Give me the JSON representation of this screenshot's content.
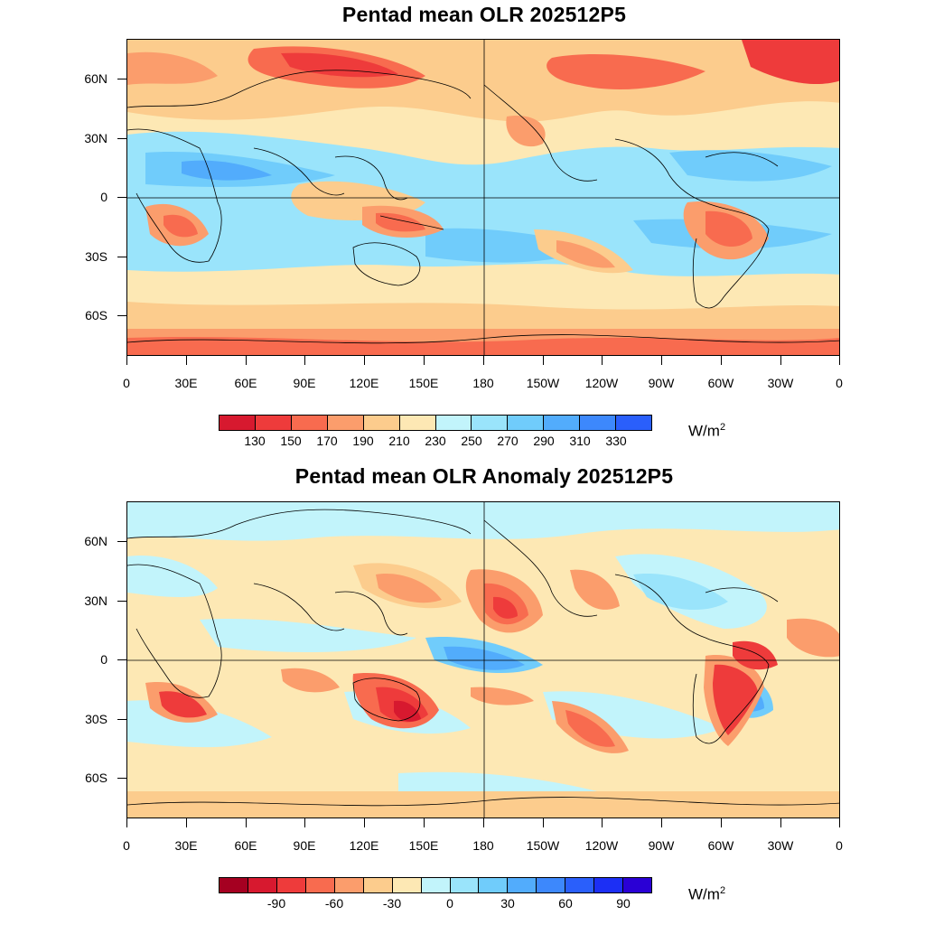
{
  "panels": [
    {
      "title": "Pentad mean OLR 202512P5",
      "units": "W/m",
      "units_exp": "2",
      "colorbar": {
        "colors": [
          "#d7192f",
          "#ee3b3b",
          "#f86b4f",
          "#fb9d6c",
          "#fccc8d",
          "#fde8b4",
          "#c2f4fb",
          "#9ae4fb",
          "#70ccfb",
          "#52acfc",
          "#3d88fc",
          "#2a5ffb"
        ],
        "labels": [
          "130",
          "150",
          "170",
          "190",
          "210",
          "230",
          "250",
          "270",
          "290",
          "310",
          "330"
        ]
      },
      "x_tick_labels": [
        "0",
        "30E",
        "60E",
        "90E",
        "120E",
        "150E",
        "180",
        "150W",
        "120W",
        "90W",
        "60W",
        "30W",
        "0"
      ],
      "y_tick_labels": [
        "60N",
        "30N",
        "0",
        "30S",
        "60S"
      ]
    },
    {
      "title": "Pentad mean OLR Anomaly 202512P5",
      "units": "W/m",
      "units_exp": "2",
      "colorbar": {
        "colors": [
          "#a50021",
          "#d7192f",
          "#ee3b3b",
          "#f86b4f",
          "#fb9d6c",
          "#fccc8d",
          "#fde8b4",
          "#c2f4fb",
          "#9ae4fb",
          "#70ccfb",
          "#52acfc",
          "#3d88fc",
          "#2a5ffb",
          "#1c2ff5",
          "#2a00d5"
        ],
        "labels": [
          "-90",
          "-60",
          "-30",
          "0",
          "30",
          "60",
          "90"
        ]
      },
      "x_tick_labels": [
        "0",
        "30E",
        "60E",
        "90E",
        "120E",
        "150E",
        "180",
        "150W",
        "120W",
        "90W",
        "60W",
        "30W",
        "0"
      ],
      "y_tick_labels": [
        "60N",
        "30N",
        "0",
        "30S",
        "60S"
      ]
    }
  ]
}
